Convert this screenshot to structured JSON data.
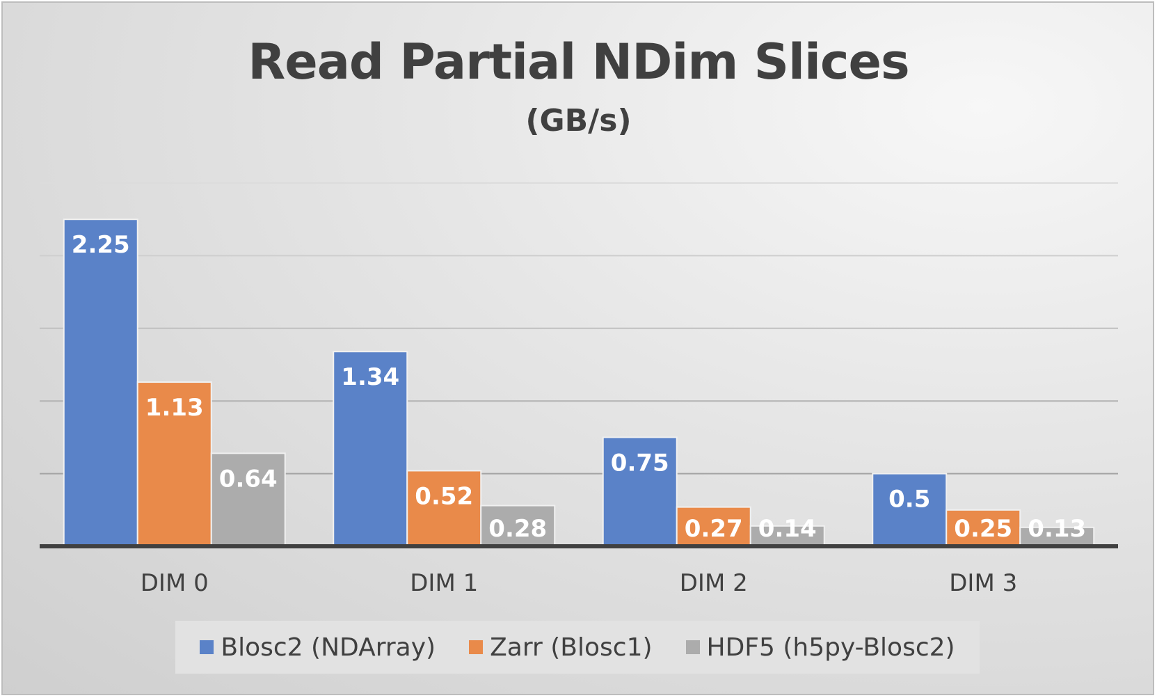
{
  "chart_data": {
    "type": "bar",
    "title": "Read Partial NDim Slices",
    "subtitle": "(GB/s)",
    "categories": [
      "DIM 0",
      "DIM 1",
      "DIM 2",
      "DIM 3"
    ],
    "series": [
      {
        "name": "Blosc2 (NDArray)",
        "color": "#5a82c8",
        "values": [
          2.25,
          1.34,
          0.75,
          0.5
        ],
        "labels": [
          "2.25",
          "1.34",
          "0.75",
          "0.5"
        ]
      },
      {
        "name": "Zarr (Blosc1)",
        "color": "#e98a4a",
        "values": [
          1.13,
          0.52,
          0.27,
          0.25
        ],
        "labels": [
          "1.13",
          "0.52",
          "0.27",
          "0.25"
        ]
      },
      {
        "name": "HDF5 (h5py-Blosc2)",
        "color": "#acacac",
        "values": [
          0.64,
          0.28,
          0.14,
          0.13
        ],
        "labels": [
          "0.64",
          "0.28",
          "0.14",
          "0.13"
        ]
      }
    ],
    "ylim": [
      0,
      2.5
    ],
    "ytick_step": 0.5,
    "grid": true,
    "legend": "bottom"
  }
}
